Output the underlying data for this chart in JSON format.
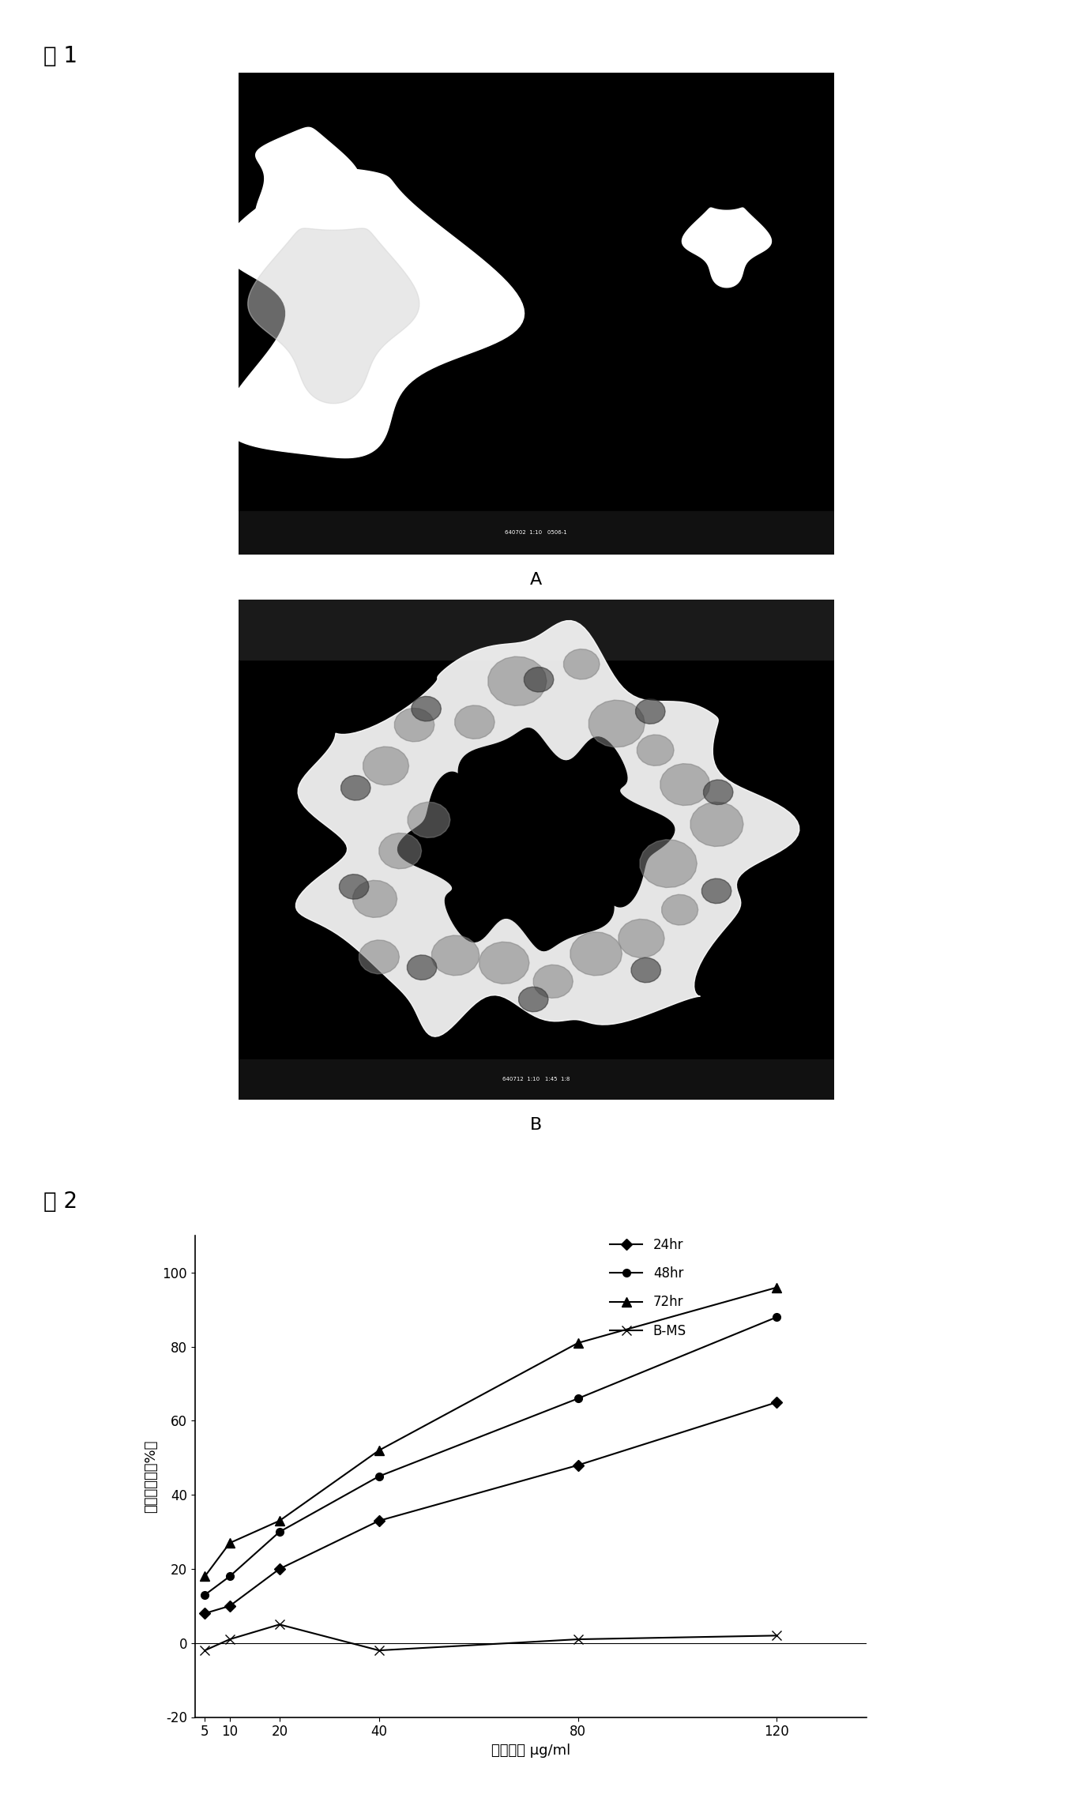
{
  "fig1_label": "图 1",
  "fig2_label": "图 2",
  "image_A_label": "A",
  "image_B_label": "B",
  "x_values": [
    5,
    10,
    20,
    40,
    80,
    120
  ],
  "series_24hr": [
    8,
    10,
    20,
    33,
    48,
    65
  ],
  "series_48hr": [
    13,
    18,
    30,
    45,
    66,
    88
  ],
  "series_72hr": [
    18,
    27,
    33,
    52,
    81,
    96
  ],
  "series_BMS": [
    -2,
    1,
    5,
    -2,
    1,
    2
  ],
  "legend_labels": [
    "24hr",
    "48hr",
    "72hr",
    "B-MS"
  ],
  "ylabel": "生长抑制率（%）",
  "xlabel": "药物浓度 μg/ml",
  "ylim": [
    -20,
    110
  ],
  "yticks": [
    -20,
    0,
    20,
    40,
    60,
    80,
    100
  ],
  "xticks": [
    5,
    10,
    20,
    40,
    80,
    120
  ],
  "line_color": "#000000",
  "bg_color": "#ffffff",
  "fig_label_fontsize": 20,
  "axis_label_fontsize": 13,
  "tick_fontsize": 12,
  "legend_fontsize": 12
}
